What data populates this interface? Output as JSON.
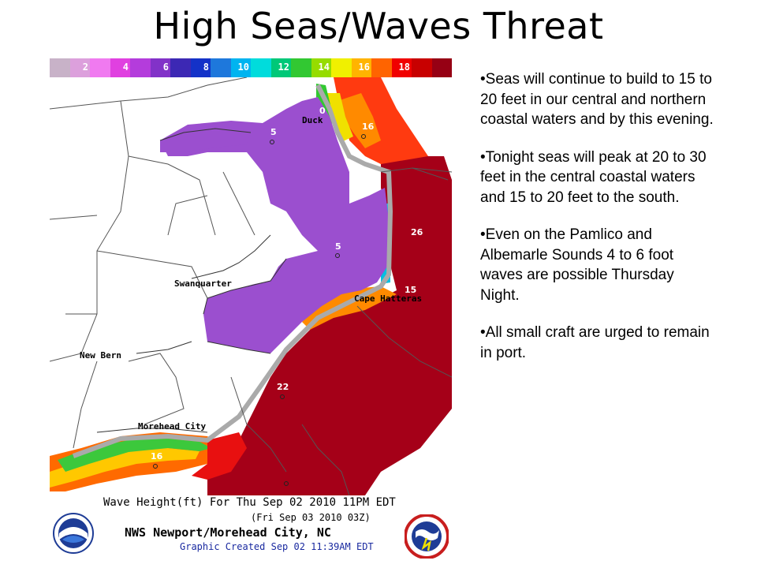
{
  "slide": {
    "title": "High Seas/Waves Threat",
    "bullets": [
      "•Seas will continue to build to 15 to 20 feet in our central and northern coastal waters and by this evening.",
      "•Tonight seas will peak at 20 to 30 feet in the central coastal waters and 15 to 20 feet to the south.",
      "•Even on the Pamlico and Albemarle Sounds 4 to 6 foot waves are possible Thursday Night.",
      "•All small craft are urged to remain in port."
    ]
  },
  "map": {
    "colorbar": {
      "segments": [
        {
          "color": "#c8b2c8",
          "label": ""
        },
        {
          "color": "#dca0dc",
          "label": "2"
        },
        {
          "color": "#f07af0",
          "label": ""
        },
        {
          "color": "#e040e0",
          "label": "4"
        },
        {
          "color": "#b43cdc",
          "label": ""
        },
        {
          "color": "#8232c8",
          "label": "6"
        },
        {
          "color": "#3c28b4",
          "label": ""
        },
        {
          "color": "#1432c8",
          "label": "8"
        },
        {
          "color": "#1e78dc",
          "label": ""
        },
        {
          "color": "#00b4f0",
          "label": "10"
        },
        {
          "color": "#00dcdc",
          "label": ""
        },
        {
          "color": "#00c878",
          "label": "12"
        },
        {
          "color": "#32c832",
          "label": ""
        },
        {
          "color": "#96dc00",
          "label": "14"
        },
        {
          "color": "#f0f000",
          "label": ""
        },
        {
          "color": "#ffb400",
          "label": "16"
        },
        {
          "color": "#ff6400",
          "label": ""
        },
        {
          "color": "#f00000",
          "label": "18"
        },
        {
          "color": "#c80000",
          "label": ""
        },
        {
          "color": "#960014",
          "label": ""
        }
      ]
    },
    "place_labels": {
      "duck": "Duck",
      "swanquarter": "Swanquarter",
      "new_bern": "New Bern",
      "cape_hatteras": "Cape Hatteras",
      "morehead_city": "Morehead City"
    },
    "wave_values": {
      "north_sound": "5",
      "north_inlet": "0",
      "north_ocean": "16",
      "central_sound": "5",
      "central_ocean": "26",
      "hatteras": "15",
      "south_ocean": "22",
      "onslow": "16"
    },
    "caption": {
      "line1": "Wave Height(ft) For Thu Sep 02 2010 11PM EDT",
      "line2": "(Fri Sep 03 2010 03Z)",
      "line3": "NWS Newport/Morehead City, NC",
      "line4": "Graphic Created Sep 02 11:39AM EDT"
    },
    "colors": {
      "sound": "#9b4fcf",
      "ocean_high": "#a50018",
      "ocean_med": "#ff3a10",
      "land_border": "#555555"
    }
  }
}
